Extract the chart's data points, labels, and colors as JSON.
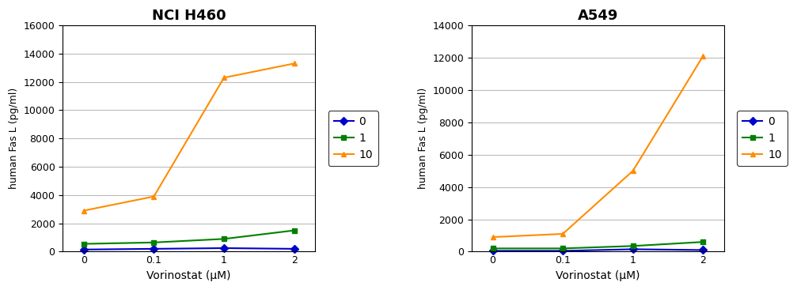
{
  "x_labels": [
    "0",
    "0.1",
    "1",
    "2"
  ],
  "x_positions": [
    0,
    1,
    2,
    3
  ],
  "left_chart": {
    "title": "NCI H460",
    "series": {
      "0": {
        "values": [
          150,
          200,
          250,
          200
        ],
        "color": "#0000cc",
        "marker": "D"
      },
      "1": {
        "values": [
          550,
          650,
          900,
          1500
        ],
        "color": "#008000",
        "marker": "s"
      },
      "10": {
        "values": [
          2900,
          3900,
          12300,
          13300
        ],
        "color": "#ff8c00",
        "marker": "^"
      }
    },
    "ylim": [
      0,
      16000
    ],
    "yticks": [
      0,
      2000,
      4000,
      6000,
      8000,
      10000,
      12000,
      14000,
      16000
    ]
  },
  "right_chart": {
    "title": "A549",
    "series": {
      "0": {
        "values": [
          50,
          50,
          150,
          100
        ],
        "color": "#0000cc",
        "marker": "D"
      },
      "1": {
        "values": [
          200,
          200,
          350,
          600
        ],
        "color": "#008000",
        "marker": "s"
      },
      "10": {
        "values": [
          900,
          1100,
          5000,
          12100
        ],
        "color": "#ff8c00",
        "marker": "^"
      }
    },
    "ylim": [
      0,
      14000
    ],
    "yticks": [
      0,
      2000,
      4000,
      6000,
      8000,
      10000,
      12000,
      14000
    ]
  },
  "ylabel": "human Fas L (pg/ml)",
  "xlabel": "Vorinostat (μM)",
  "legend_labels": [
    "0",
    "1",
    "10"
  ],
  "legend_colors": [
    "#0000cc",
    "#008000",
    "#ff8c00"
  ],
  "legend_markers": [
    "D",
    "s",
    "^"
  ],
  "bg_color": "#ffffff",
  "grid_color": "#bbbbbb"
}
